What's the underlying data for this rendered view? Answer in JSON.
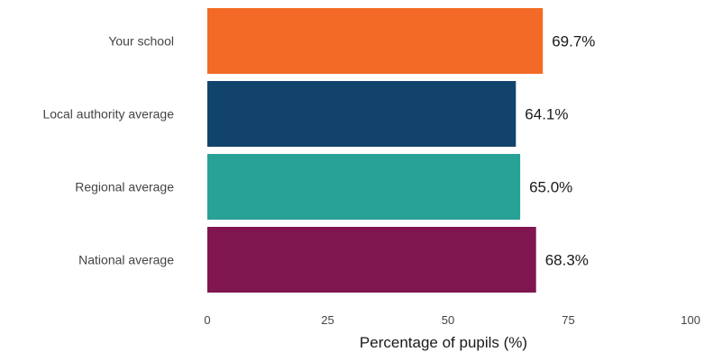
{
  "chart_data": {
    "type": "bar",
    "orientation": "horizontal",
    "categories": [
      "Your school",
      "Local authority average",
      "Regional average",
      "National average"
    ],
    "values": [
      69.7,
      64.1,
      65.0,
      68.3
    ],
    "value_labels": [
      "69.7%",
      "64.1%",
      "65.0%",
      "68.3%"
    ],
    "colors": [
      "#f26a25",
      "#12436d",
      "#28a197",
      "#801650"
    ],
    "xlabel": "Percentage of pupils (%)",
    "xlim": [
      0,
      100
    ],
    "xticks": [
      0,
      25,
      50,
      75,
      100
    ],
    "grid": false,
    "legend": "none"
  }
}
